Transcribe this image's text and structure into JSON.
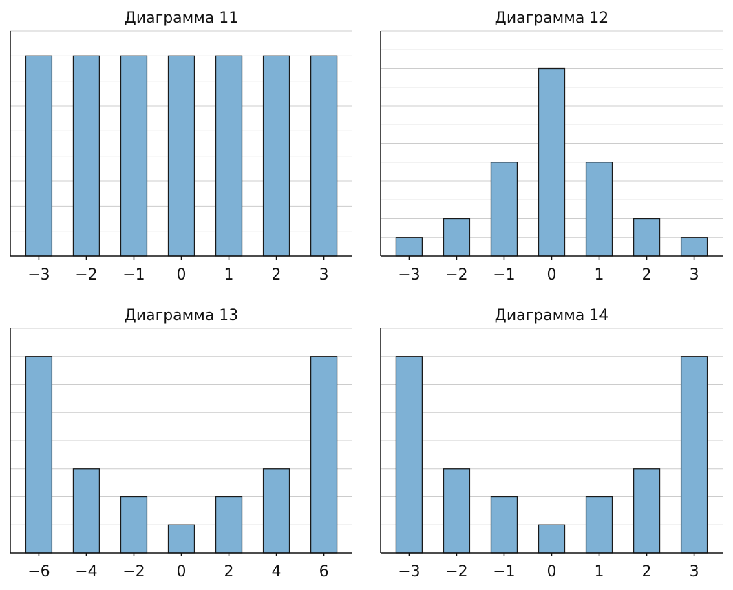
{
  "chart_data": [
    {
      "type": "bar",
      "title": "Диаграмма 11",
      "categories": [
        "−3",
        "−2",
        "−1",
        "0",
        "1",
        "2",
        "3"
      ],
      "values": [
        8,
        8,
        8,
        8,
        8,
        8,
        8
      ],
      "ylim": [
        0,
        9
      ],
      "grid": true,
      "color": "#7eb1d5"
    },
    {
      "type": "bar",
      "title": "Диаграмма 12",
      "categories": [
        "−3",
        "−2",
        "−1",
        "0",
        "1",
        "2",
        "3"
      ],
      "values": [
        1,
        2,
        5,
        10,
        5,
        2,
        1
      ],
      "ylim": [
        0,
        12
      ],
      "grid": true,
      "color": "#7eb1d5"
    },
    {
      "type": "bar",
      "title": "Диаграмма 13",
      "categories": [
        "−6",
        "−4",
        "−2",
        "0",
        "2",
        "4",
        "6"
      ],
      "values": [
        7,
        3,
        2,
        1,
        2,
        3,
        7
      ],
      "ylim": [
        0,
        8
      ],
      "grid": true,
      "color": "#7eb1d5"
    },
    {
      "type": "bar",
      "title": "Диаграмма 14",
      "categories": [
        "−3",
        "−2",
        "−1",
        "0",
        "1",
        "2",
        "3"
      ],
      "values": [
        7,
        3,
        2,
        1,
        2,
        3,
        7
      ],
      "ylim": [
        0,
        8
      ],
      "grid": true,
      "color": "#7eb1d5"
    }
  ]
}
